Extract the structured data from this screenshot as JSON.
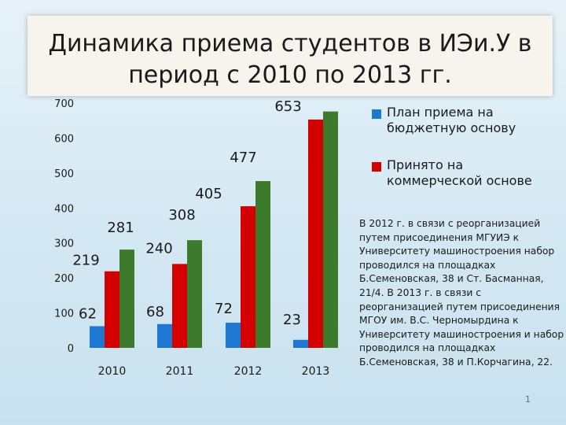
{
  "title": "Динамика приема студентов в ИЭи.У в период с 2010 по 2013 гг.",
  "chart_data": {
    "type": "bar",
    "categories": [
      "2010",
      "2011",
      "2012",
      "2013"
    ],
    "series": [
      {
        "name": "План приема на бюджетную основу",
        "color": "#1f77d4",
        "values": [
          62,
          68,
          72,
          23
        ]
      },
      {
        "name": "Принято на коммерческой основе",
        "color": "#d40000",
        "values": [
          219,
          240,
          405,
          653
        ]
      },
      {
        "name": "",
        "color": "#3c7a2c",
        "values": [
          281,
          308,
          477,
          676
        ]
      }
    ],
    "yticks": [
      0,
      100,
      200,
      300,
      400,
      500,
      600,
      700
    ],
    "ylim": [
      0,
      700
    ],
    "grid": false,
    "legend_position": "right"
  },
  "note": "В 2012 г. в связи с реорганизацией путем присоединения МГУИЭ к Университету машиностроения набор проводился на площадках Б.Семеновская, 38 и Ст. Басманная, 21/4. В 2013 г. в связи с реорганизацией путем присоединения МГОУ им. В.С. Черномырдина к Университету машиностроения и набор проводился на площадках Б.Семеновская, 38 и П.Корчагина, 22.",
  "slide_number": "1"
}
